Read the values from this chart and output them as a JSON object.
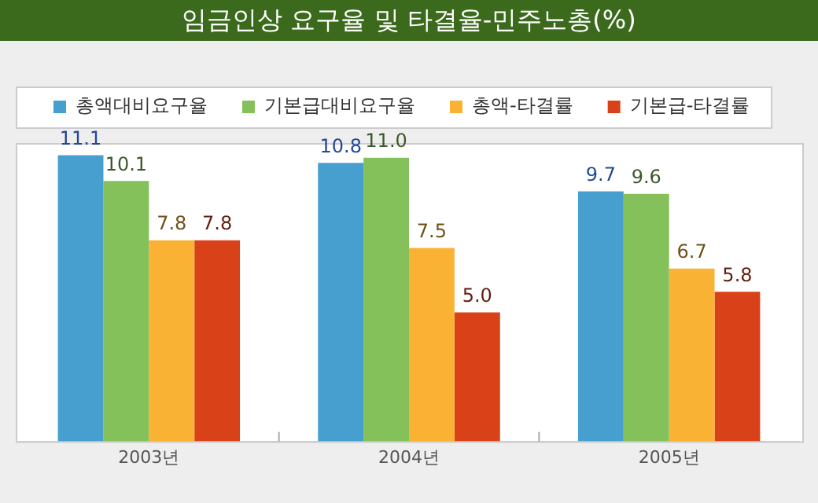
{
  "chart_data": {
    "type": "bar",
    "title": "임금인상 요구율 및 타결율-민주노총(%)",
    "categories": [
      "2003년",
      "2004년",
      "2005년"
    ],
    "series": [
      {
        "name": "총액대비요구율",
        "color": "#479fd0",
        "values": [
          11.1,
          10.8,
          9.7
        ],
        "value_labels": [
          "11.1",
          "10.8",
          "9.7"
        ]
      },
      {
        "name": "기본급대비요구율",
        "color": "#85c15a",
        "values": [
          10.1,
          11.0,
          9.6
        ],
        "value_labels": [
          "10.1",
          "11.0",
          "9.6"
        ]
      },
      {
        "name": "총액-타결률",
        "color": "#fab235",
        "values": [
          7.8,
          7.5,
          6.7
        ],
        "value_labels": [
          "7.8",
          "7.5",
          "6.7"
        ]
      },
      {
        "name": "기본급-타결률",
        "color": "#d94118",
        "values": [
          7.8,
          5.0,
          5.8
        ],
        "value_labels": [
          "7.8",
          "5.0",
          "5.8"
        ]
      }
    ],
    "legend": "top",
    "grid": false
  }
}
